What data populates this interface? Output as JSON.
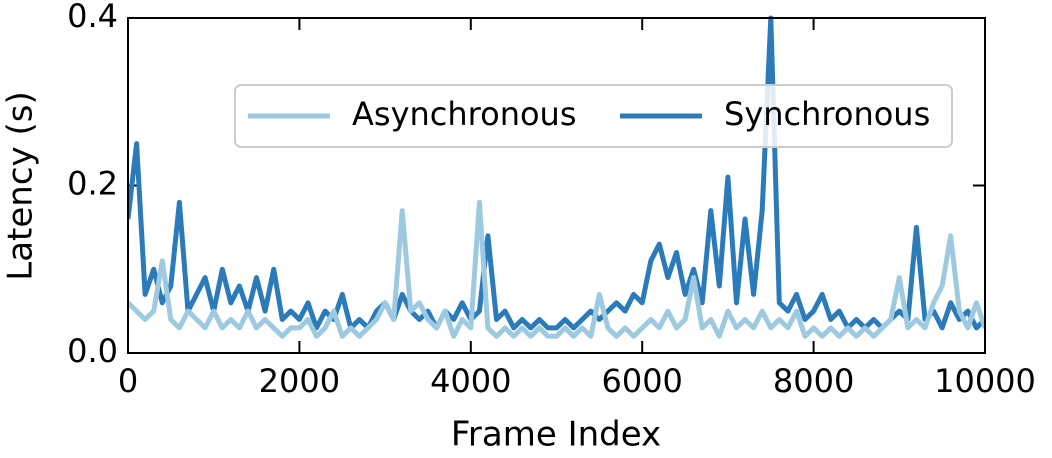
{
  "chart_data": {
    "type": "line",
    "xlabel": "Frame Index",
    "ylabel": "Latency (s)",
    "x": [
      0,
      100,
      200,
      300,
      400,
      500,
      600,
      700,
      800,
      900,
      1000,
      1100,
      1200,
      1300,
      1400,
      1500,
      1600,
      1700,
      1800,
      1900,
      2000,
      2100,
      2200,
      2300,
      2400,
      2500,
      2600,
      2700,
      2800,
      2900,
      3000,
      3100,
      3200,
      3300,
      3400,
      3500,
      3600,
      3700,
      3800,
      3900,
      4000,
      4100,
      4200,
      4300,
      4400,
      4500,
      4600,
      4700,
      4800,
      4900,
      5000,
      5100,
      5200,
      5300,
      5400,
      5500,
      5600,
      5700,
      5800,
      5900,
      6000,
      6100,
      6200,
      6300,
      6400,
      6500,
      6600,
      6700,
      6800,
      6900,
      7000,
      7100,
      7200,
      7300,
      7400,
      7500,
      7600,
      7700,
      7800,
      7900,
      8000,
      8100,
      8200,
      8300,
      8400,
      8500,
      8600,
      8700,
      8800,
      8900,
      9000,
      9100,
      9200,
      9300,
      9400,
      9500,
      9600,
      9700,
      9800,
      9900,
      10000
    ],
    "series": [
      {
        "name": "Synchronous",
        "color": "#2b7bba",
        "values": [
          0.16,
          0.25,
          0.07,
          0.1,
          0.06,
          0.08,
          0.18,
          0.05,
          0.07,
          0.09,
          0.05,
          0.1,
          0.06,
          0.08,
          0.05,
          0.09,
          0.05,
          0.1,
          0.04,
          0.05,
          0.04,
          0.06,
          0.03,
          0.05,
          0.04,
          0.07,
          0.03,
          0.04,
          0.03,
          0.05,
          0.06,
          0.04,
          0.07,
          0.05,
          0.04,
          0.05,
          0.03,
          0.05,
          0.04,
          0.06,
          0.04,
          0.05,
          0.14,
          0.04,
          0.05,
          0.03,
          0.04,
          0.03,
          0.04,
          0.03,
          0.03,
          0.04,
          0.03,
          0.04,
          0.05,
          0.04,
          0.05,
          0.06,
          0.05,
          0.07,
          0.06,
          0.11,
          0.13,
          0.09,
          0.12,
          0.07,
          0.1,
          0.06,
          0.17,
          0.08,
          0.21,
          0.06,
          0.16,
          0.07,
          0.17,
          0.4,
          0.06,
          0.05,
          0.07,
          0.04,
          0.05,
          0.07,
          0.04,
          0.05,
          0.03,
          0.04,
          0.03,
          0.04,
          0.03,
          0.04,
          0.05,
          0.04,
          0.15,
          0.04,
          0.05,
          0.03,
          0.06,
          0.04,
          0.05,
          0.03,
          0.04
        ]
      },
      {
        "name": "Asynchronous",
        "color": "#9ecae1",
        "values": [
          0.06,
          0.05,
          0.04,
          0.05,
          0.11,
          0.04,
          0.03,
          0.05,
          0.04,
          0.03,
          0.05,
          0.03,
          0.04,
          0.03,
          0.05,
          0.03,
          0.04,
          0.03,
          0.02,
          0.03,
          0.03,
          0.04,
          0.02,
          0.03,
          0.05,
          0.02,
          0.03,
          0.02,
          0.03,
          0.04,
          0.06,
          0.04,
          0.17,
          0.05,
          0.06,
          0.04,
          0.03,
          0.05,
          0.02,
          0.04,
          0.03,
          0.18,
          0.03,
          0.02,
          0.03,
          0.02,
          0.03,
          0.02,
          0.03,
          0.02,
          0.02,
          0.03,
          0.02,
          0.03,
          0.02,
          0.07,
          0.03,
          0.02,
          0.03,
          0.02,
          0.03,
          0.04,
          0.03,
          0.05,
          0.03,
          0.04,
          0.09,
          0.03,
          0.04,
          0.02,
          0.05,
          0.03,
          0.04,
          0.03,
          0.05,
          0.03,
          0.04,
          0.03,
          0.05,
          0.02,
          0.03,
          0.02,
          0.03,
          0.02,
          0.03,
          0.02,
          0.03,
          0.02,
          0.03,
          0.04,
          0.09,
          0.03,
          0.04,
          0.03,
          0.06,
          0.08,
          0.14,
          0.05,
          0.03,
          0.06,
          0.03
        ]
      }
    ],
    "legend_order": [
      "Asynchronous",
      "Synchronous"
    ],
    "xlim": [
      0,
      10000
    ],
    "xticks": [
      0,
      2000,
      4000,
      6000,
      8000,
      10000
    ],
    "ylim": [
      0,
      0.4
    ],
    "yticks": [
      {
        "value": 0,
        "label": "0.0"
      },
      0.2,
      0.4
    ],
    "legend_position": "upper right",
    "grid": false
  }
}
